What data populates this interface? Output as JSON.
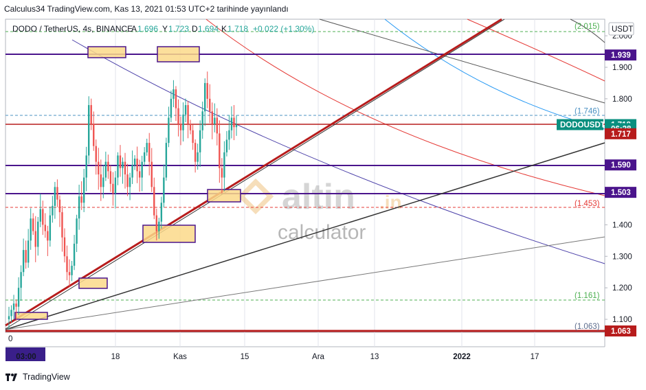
{
  "header": {
    "publish_line": "Calculus34 TradingView.com, Kas 13, 2021 01:53 UTC+2 tarihinde yayınlandı"
  },
  "legend": {
    "symbol": "DODO / TetherUS, 4s, BINANCE",
    "open_label": "A",
    "open": "1.696",
    "high_label": "Y",
    "high": "1.723",
    "low_label": "D",
    "low": "1.694",
    "close_label": "K",
    "close": "1.718",
    "change": "+0.022 (+1.30%)",
    "up_color": "#26a69a"
  },
  "currency_button": "USDT",
  "watermark": {
    "brand_a": "altin",
    "brand_b": ".in",
    "brand_c": "calculator"
  },
  "footer": {
    "brand": "TradingView",
    "logo_icon": "tradingview-logo-icon"
  },
  "chart_data": {
    "type": "candlestick",
    "symbol": "DODOUSDT",
    "timeframe": "4s",
    "ylim": [
      1.05,
      2.03
    ],
    "x_ticks": [
      "03:00",
      "18",
      "Kas",
      "15",
      "Ara",
      "13",
      "2022",
      "17"
    ],
    "y_ticks": [
      "2.000",
      "1.900",
      "1.800",
      "1.400",
      "1.300",
      "1.200",
      "1.100"
    ],
    "x_origin_label": "0",
    "price_tags": [
      {
        "label": "1.939",
        "value": 1.939,
        "color": "#4a148c"
      },
      {
        "label": "DODOUSDT",
        "value": 1.718,
        "color": "#0a8f7f"
      },
      {
        "label": "1.718",
        "value": 1.718,
        "color": "#0a8f7f"
      },
      {
        "label": "06:28",
        "value": 1.705,
        "color": "#0a8f7f"
      },
      {
        "label": "1.717",
        "value": 1.689,
        "color": "#b71c1c"
      },
      {
        "label": "1.590",
        "value": 1.59,
        "color": "#4a148c"
      },
      {
        "label": "1.503",
        "value": 1.503,
        "color": "#4a148c"
      },
      {
        "label": "1.063",
        "value": 1.063,
        "color": "#b71c1c"
      }
    ],
    "fib_labels": [
      {
        "label": "(2.015)",
        "value": 2.015,
        "color": "#4caf50"
      },
      {
        "label": "(1.746)",
        "value": 1.746,
        "color": "#4a90c2"
      },
      {
        "label": "(1.453)",
        "value": 1.453,
        "color": "#e53935"
      },
      {
        "label": "(1.161)",
        "value": 1.161,
        "color": "#4caf50"
      },
      {
        "label": "(1.063)",
        "value": 1.063,
        "color": "#5b6b8c"
      }
    ],
    "horizontal_levels": [
      1.939,
      1.717,
      1.59,
      1.503
    ],
    "candles_close": [
      1.11,
      1.13,
      1.15,
      1.14,
      1.2,
      1.25,
      1.32,
      1.28,
      1.35,
      1.42,
      1.38,
      1.33,
      1.41,
      1.45,
      1.4,
      1.38,
      1.35,
      1.43,
      1.46,
      1.52,
      1.48,
      1.44,
      1.36,
      1.3,
      1.25,
      1.24,
      1.27,
      1.34,
      1.42,
      1.49,
      1.47,
      1.55,
      1.62,
      1.78,
      1.72,
      1.65,
      1.6,
      1.56,
      1.52,
      1.55,
      1.6,
      1.57,
      1.53,
      1.5,
      1.55,
      1.62,
      1.58,
      1.6,
      1.56,
      1.52,
      1.55,
      1.59,
      1.61,
      1.57,
      1.55,
      1.6,
      1.63,
      1.66,
      1.6,
      1.52,
      1.43,
      1.38,
      1.41,
      1.47,
      1.55,
      1.66,
      1.74,
      1.8,
      1.83,
      1.77,
      1.72,
      1.7,
      1.75,
      1.78,
      1.72,
      1.7,
      1.66,
      1.6,
      1.63,
      1.7,
      1.76,
      1.85,
      1.8,
      1.76,
      1.72,
      1.74,
      1.69,
      1.58,
      1.55,
      1.63,
      1.67,
      1.7,
      1.74,
      1.71,
      1.718
    ]
  }
}
